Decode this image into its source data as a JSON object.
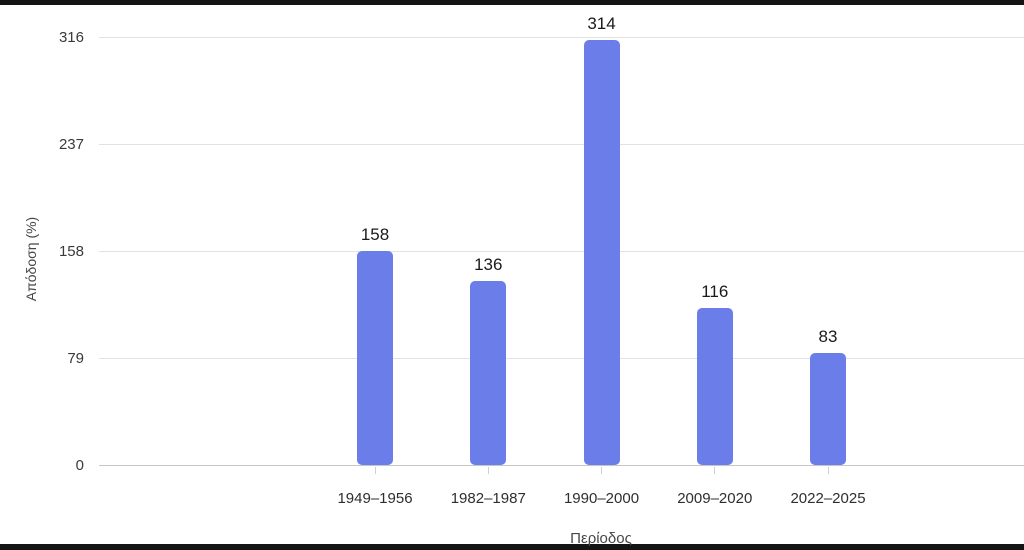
{
  "chart_data": {
    "type": "bar",
    "categories": [
      "1949–1956",
      "1982–1987",
      "1990–2000",
      "2009–2020",
      "2022–2025"
    ],
    "values": [
      158,
      136,
      314,
      116,
      83
    ],
    "data_labels": [
      "158",
      "136",
      "314",
      "116",
      "83"
    ],
    "xlabel": "Περίοδος",
    "ylabel": "Απόδοση (%)",
    "yticks": [
      0,
      79,
      158,
      237,
      316
    ],
    "ylim": [
      0,
      316
    ],
    "grid": "horizontal-only",
    "legend": "none",
    "colors": {
      "bar_fill": "#6b7de8",
      "gridline": "#e2e2e2",
      "baseline": "#c6c6c6",
      "tick_mark": "#cfcfcf",
      "value_label_text": "#1a1a1a",
      "tick_label_text": "#3a3a3a",
      "axis_title_text": "#474747",
      "edge_strip": "#141414",
      "background": "#ffffff"
    }
  }
}
